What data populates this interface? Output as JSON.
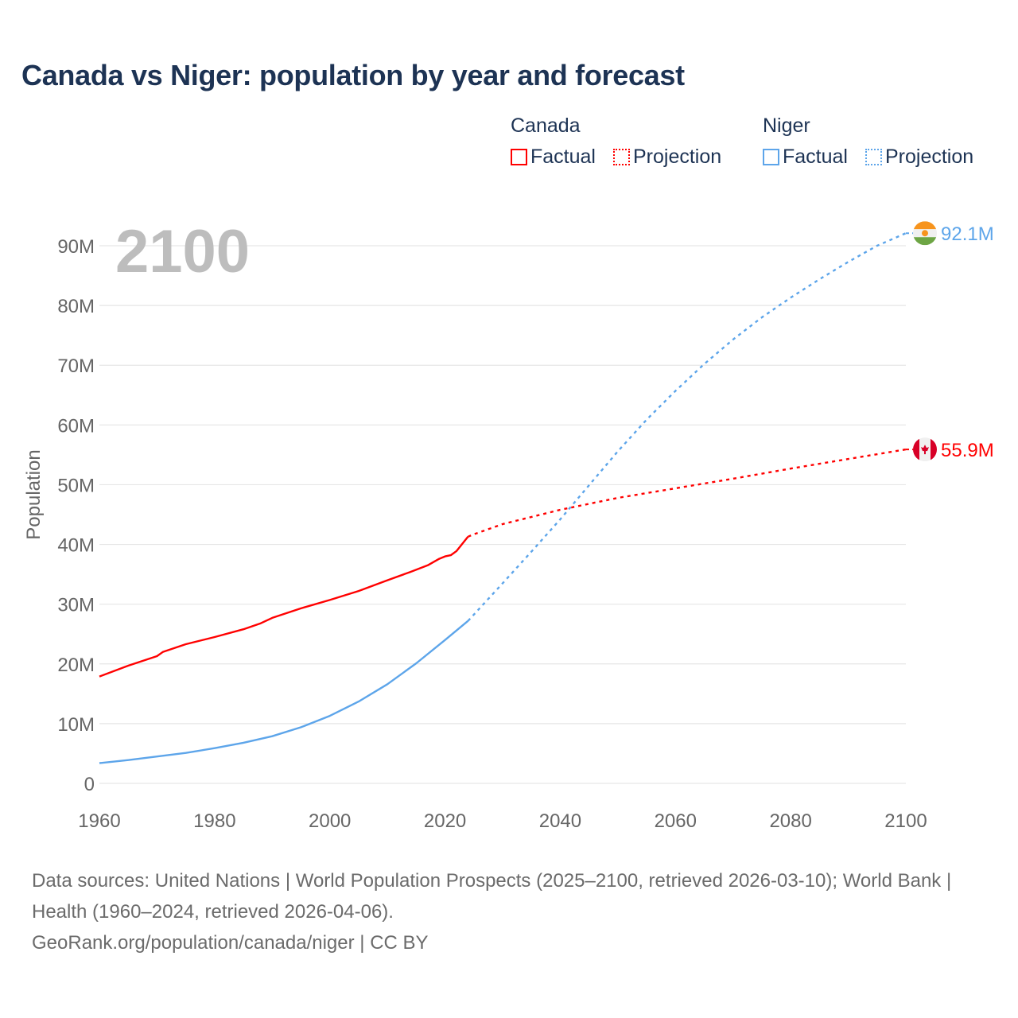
{
  "title": "Canada vs Niger: population by year and forecast",
  "legend": {
    "groups": [
      {
        "name": "Canada",
        "factual_label": "Factual",
        "projection_label": "Projection",
        "color": "#ff0000"
      },
      {
        "name": "Niger",
        "factual_label": "Factual",
        "projection_label": "Projection",
        "color": "#5da5ea"
      }
    ]
  },
  "year_watermark": "2100",
  "footer": {
    "sources": "Data sources: United Nations | World Population Prospects (2025–2100, retrieved 2026-03-10); World Bank | Health (1960–2024, retrieved 2026-04-06).",
    "credit": "GeoRank.org/population/canada/niger | CC BY"
  },
  "chart_data": {
    "type": "line",
    "title": "Canada vs Niger: population by year and forecast",
    "xlabel": "",
    "ylabel": "Population",
    "xlim": [
      1960,
      2100
    ],
    "ylim": [
      0,
      90
    ],
    "x_ticks": [
      "1960",
      "1980",
      "2000",
      "2020",
      "2040",
      "2060",
      "2080",
      "2100"
    ],
    "y_ticks": [
      "0",
      "10M",
      "20M",
      "30M",
      "40M",
      "50M",
      "60M",
      "70M",
      "80M",
      "90M"
    ],
    "y_unit": "millions",
    "grid": true,
    "legend_position": "top-right",
    "series": [
      {
        "name": "Canada",
        "color": "#ff0000",
        "end_label": "55.9M",
        "factual": {
          "x": [
            1960,
            1965,
            1970,
            1971,
            1975,
            1980,
            1985,
            1988,
            1990,
            1995,
            2000,
            2005,
            2010,
            2014,
            2017,
            2019,
            2020,
            2021,
            2022,
            2023,
            2024
          ],
          "y": [
            17.9,
            19.7,
            21.3,
            22.0,
            23.3,
            24.5,
            25.8,
            26.8,
            27.7,
            29.3,
            30.7,
            32.2,
            34.0,
            35.4,
            36.5,
            37.6,
            38.0,
            38.2,
            38.9,
            40.1,
            41.3
          ]
        },
        "projection": {
          "x": [
            2024,
            2025,
            2030,
            2040,
            2050,
            2060,
            2070,
            2080,
            2090,
            2100
          ],
          "y": [
            41.3,
            41.7,
            43.4,
            45.8,
            47.8,
            49.4,
            51.0,
            52.7,
            54.3,
            55.9
          ]
        }
      },
      {
        "name": "Niger",
        "color": "#5da5ea",
        "end_label": "92.1M",
        "factual": {
          "x": [
            1960,
            1965,
            1970,
            1975,
            1980,
            1985,
            1990,
            1995,
            2000,
            2005,
            2010,
            2015,
            2020,
            2024
          ],
          "y": [
            3.4,
            3.9,
            4.5,
            5.1,
            5.9,
            6.8,
            7.9,
            9.4,
            11.3,
            13.7,
            16.6,
            20.1,
            24.0,
            27.2
          ]
        },
        "projection": {
          "x": [
            2024,
            2030,
            2035,
            2040,
            2045,
            2050,
            2055,
            2060,
            2065,
            2070,
            2075,
            2080,
            2085,
            2090,
            2095,
            2100
          ],
          "y": [
            27.2,
            33.5,
            38.8,
            44.2,
            49.9,
            55.6,
            60.9,
            65.7,
            70.2,
            74.3,
            78.0,
            81.3,
            84.4,
            87.3,
            90.0,
            92.1
          ]
        }
      }
    ]
  }
}
